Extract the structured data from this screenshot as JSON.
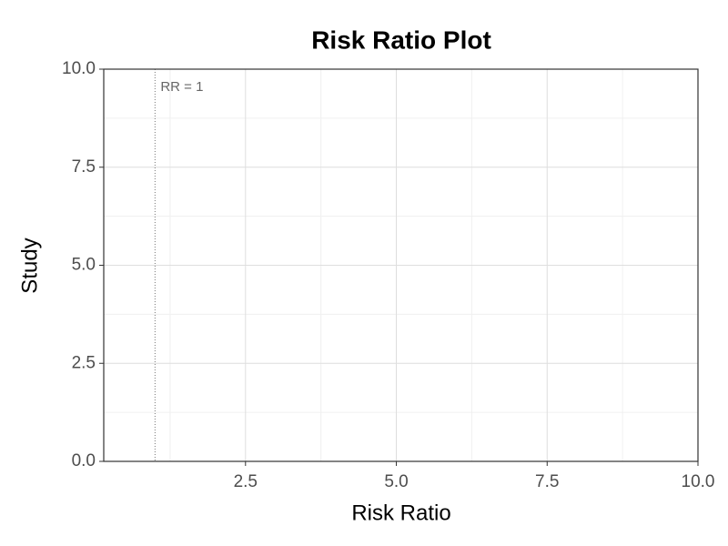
{
  "chart_data": {
    "type": "scatter",
    "title": "Risk Ratio Plot",
    "x_label": "Risk Ratio",
    "y_label": "Study",
    "series": [],
    "xlim": [
      0.15,
      10
    ],
    "ylim": [
      0,
      10
    ],
    "xticks": [
      {
        "value": 2.5,
        "label": "2.5"
      },
      {
        "value": 5,
        "label": "5.0"
      },
      {
        "value": 7.5,
        "label": "7.5"
      },
      {
        "value": 10,
        "label": "10.0"
      }
    ],
    "yticks": [
      {
        "value": 0,
        "label": "0.0"
      },
      {
        "value": 2.5,
        "label": "2.5"
      },
      {
        "value": 5,
        "label": "5.0"
      },
      {
        "value": 7.5,
        "label": "7.5"
      },
      {
        "value": 10,
        "label": "10.0"
      }
    ],
    "x_minor_ticks": [
      1.25,
      3.75,
      6.25,
      8.75
    ],
    "y_minor_ticks": [
      1.25,
      3.75,
      6.25,
      8.75
    ],
    "grid": true,
    "reference_line": {
      "x": 1,
      "label": "RR = 1"
    }
  }
}
